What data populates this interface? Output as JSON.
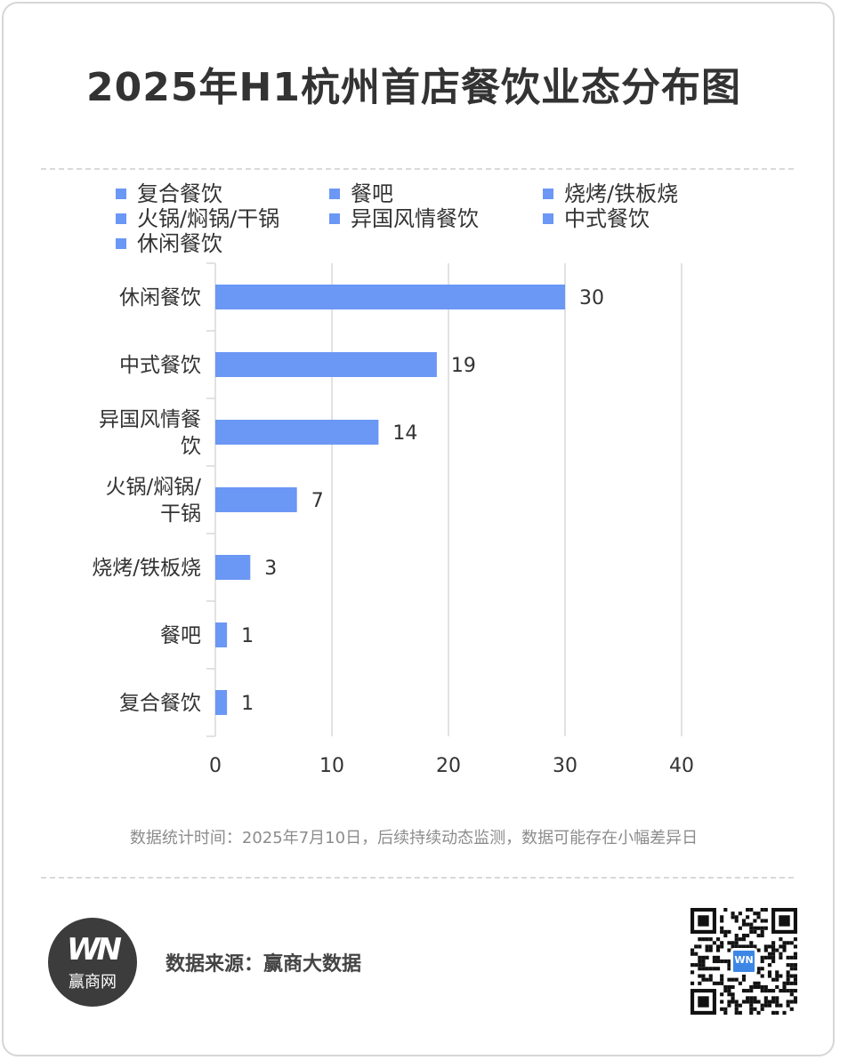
{
  "title": "2025年H1杭州首店餐饮业态分布图",
  "accent_color": "#6b97f5",
  "legend": [
    "复合餐饮",
    "餐吧",
    "烧烤/铁板烧",
    "火锅/焖锅/干锅",
    "异国风情餐饮",
    "中式餐饮",
    "休闲餐饮"
  ],
  "chart_data": {
    "type": "bar",
    "orientation": "horizontal",
    "categories": [
      "休闲餐饮",
      "中式餐饮",
      "异国风情餐饮",
      "火锅/焖锅/干锅",
      "烧烤/铁板烧",
      "餐吧",
      "复合餐饮"
    ],
    "category_label_lines": [
      [
        "休闲餐饮"
      ],
      [
        "中式餐饮"
      ],
      [
        "异国风情餐",
        "饮"
      ],
      [
        "火锅/焖锅/",
        "干锅"
      ],
      [
        "烧烤/铁板烧"
      ],
      [
        "餐吧"
      ],
      [
        "复合餐饮"
      ]
    ],
    "values": [
      30,
      19,
      14,
      7,
      3,
      1,
      1
    ],
    "xlim": [
      0,
      40
    ],
    "xticks": [
      0,
      10,
      20,
      30,
      40
    ],
    "xtick_labels": [
      "0",
      "10",
      "20",
      "30",
      "40"
    ],
    "grid": true,
    "data_labels": true,
    "legend_position": "top"
  },
  "note": "数据统计时间：2025年7月10日，后续持续动态监测，数据可能存在小幅差异日",
  "footer": {
    "logo_mark": "WN",
    "logo_name": "赢商网",
    "source": "数据来源：赢商大数据",
    "qr_center": "WN"
  }
}
